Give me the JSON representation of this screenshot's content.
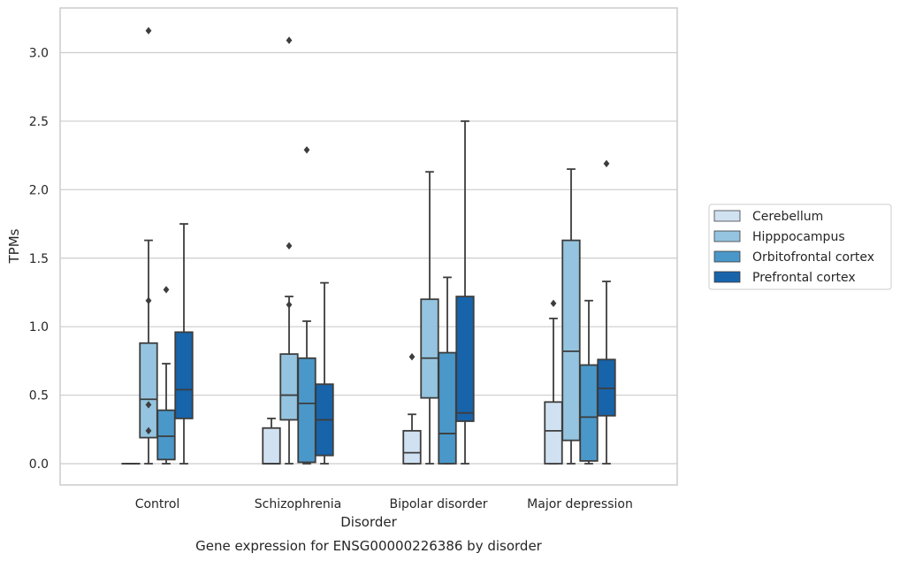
{
  "chart_data": {
    "type": "box",
    "caption": "Gene expression for ENSG00000226386 by disorder",
    "xlabel": "Disorder",
    "ylabel": "TPMs",
    "ylim": [
      -0.15,
      3.32
    ],
    "yticks": [
      0.0,
      0.5,
      1.0,
      1.5,
      2.0,
      2.5,
      3.0
    ],
    "ytick_labels": [
      "0.0",
      "0.5",
      "1.0",
      "1.5",
      "2.0",
      "2.5",
      "3.0"
    ],
    "grid": "horizontal",
    "legend_position": "right",
    "categories": [
      "Control",
      "Schizophrenia",
      "Bipolar disorder",
      "Major depression"
    ],
    "series": [
      {
        "name": "Cerebellum",
        "color": "#d0e1f2",
        "boxes": [
          {
            "whislo": 0,
            "q1": 0,
            "med": 0,
            "q3": 0,
            "whishi": 0,
            "fliers": []
          },
          {
            "whislo": 0,
            "q1": 0,
            "med": 0,
            "q3": 0.26,
            "whishi": 0.33,
            "fliers": []
          },
          {
            "whislo": 0,
            "q1": 0,
            "med": 0.08,
            "q3": 0.24,
            "whishi": 0.36,
            "fliers": [
              0.78
            ]
          },
          {
            "whislo": 0,
            "q1": 0,
            "med": 0.24,
            "q3": 0.45,
            "whishi": 1.06,
            "fliers": [
              1.17
            ]
          }
        ]
      },
      {
        "name": "Hipppocampus",
        "color": "#94c4df",
        "boxes": [
          {
            "whislo": 0,
            "q1": 0.19,
            "med": 0.47,
            "q3": 0.88,
            "whishi": 1.63,
            "fliers": [
              3.16,
              1.19,
              0.43,
              0.24
            ]
          },
          {
            "whislo": 0,
            "q1": 0.32,
            "med": 0.5,
            "q3": 0.8,
            "whishi": 1.22,
            "fliers": [
              3.09,
              1.59,
              1.16
            ]
          },
          {
            "whislo": 0,
            "q1": 0.48,
            "med": 0.77,
            "q3": 1.2,
            "whishi": 2.13,
            "fliers": []
          },
          {
            "whislo": 0,
            "q1": 0.17,
            "med": 0.82,
            "q3": 1.63,
            "whishi": 2.15,
            "fliers": []
          }
        ]
      },
      {
        "name": "Orbitofrontal cortex",
        "color": "#4a98c9",
        "boxes": [
          {
            "whislo": 0,
            "q1": 0.03,
            "med": 0.2,
            "q3": 0.39,
            "whishi": 0.73,
            "fliers": [
              1.27
            ]
          },
          {
            "whislo": 0,
            "q1": 0.01,
            "med": 0.44,
            "q3": 0.77,
            "whishi": 1.04,
            "fliers": [
              2.29
            ]
          },
          {
            "whislo": 0,
            "q1": 0,
            "med": 0.22,
            "q3": 0.81,
            "whishi": 1.36,
            "fliers": []
          },
          {
            "whislo": 0,
            "q1": 0.02,
            "med": 0.34,
            "q3": 0.72,
            "whishi": 1.19,
            "fliers": []
          }
        ]
      },
      {
        "name": "Prefrontal cortex",
        "color": "#1764ab",
        "boxes": [
          {
            "whislo": 0,
            "q1": 0.33,
            "med": 0.54,
            "q3": 0.96,
            "whishi": 1.75,
            "fliers": []
          },
          {
            "whislo": 0,
            "q1": 0.06,
            "med": 0.32,
            "q3": 0.58,
            "whishi": 1.32,
            "fliers": []
          },
          {
            "whislo": 0,
            "q1": 0.31,
            "med": 0.37,
            "q3": 1.22,
            "whishi": 2.5,
            "fliers": []
          },
          {
            "whislo": 0,
            "q1": 0.35,
            "med": 0.55,
            "q3": 0.76,
            "whishi": 1.33,
            "fliers": [
              2.19
            ]
          }
        ]
      }
    ]
  }
}
